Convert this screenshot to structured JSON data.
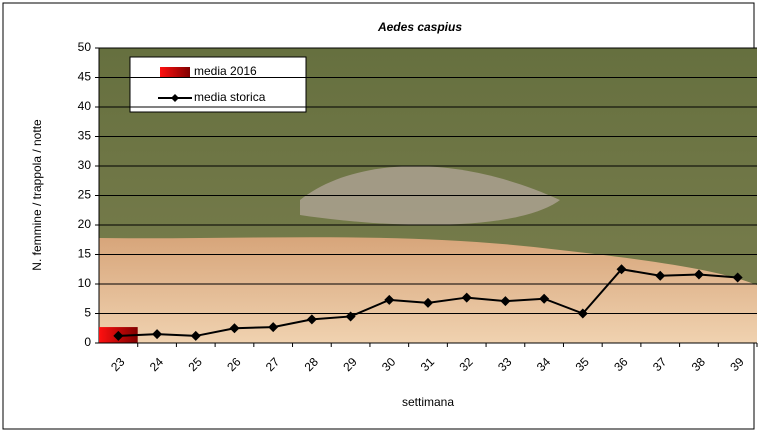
{
  "chart_data": {
    "type": "bar-line",
    "title": "Aedes caspius",
    "x_label": "settimana",
    "y_label": "N. femmine / trappola / notte",
    "categories": [
      "23",
      "24",
      "25",
      "26",
      "27",
      "28",
      "29",
      "30",
      "31",
      "32",
      "33",
      "34",
      "35",
      "36",
      "37",
      "38",
      "39"
    ],
    "series": [
      {
        "name": "media 2016",
        "type": "bar",
        "color": "#cc0000",
        "values": [
          2.7,
          null,
          null,
          null,
          null,
          null,
          null,
          null,
          null,
          null,
          null,
          null,
          null,
          null,
          null,
          null,
          null
        ]
      },
      {
        "name": "media storica",
        "type": "line",
        "color": "#000000",
        "values": [
          1.2,
          1.5,
          1.2,
          2.5,
          2.7,
          4,
          4.5,
          7.3,
          6.8,
          7.7,
          7.1,
          7.5,
          5,
          12.5,
          11.4,
          11.6,
          11.1
        ]
      }
    ],
    "ylim": [
      0,
      50
    ],
    "yticks": [
      0,
      5,
      10,
      15,
      20,
      25,
      30,
      35,
      40,
      45,
      50
    ],
    "grid": true,
    "legend": "top-left"
  }
}
